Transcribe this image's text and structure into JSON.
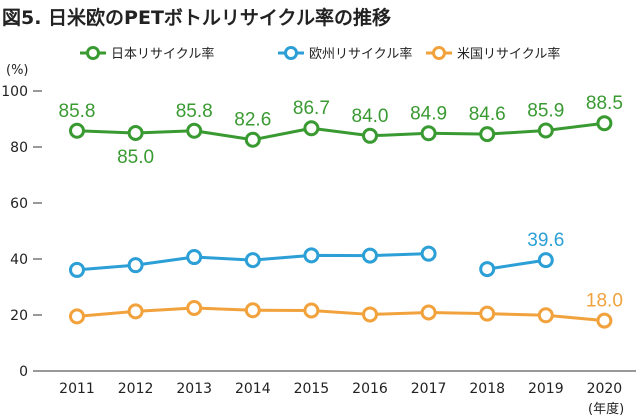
{
  "chart_data": {
    "type": "line",
    "title": "図5. 日米欧のPETボトルリサイクル率の推移",
    "y_unit": "(%)",
    "x_unit": "(年度)",
    "x": [
      "2011",
      "2012",
      "2013",
      "2014",
      "2015",
      "2016",
      "2017",
      "2018",
      "2019",
      "2020"
    ],
    "y_ticks": [
      "0",
      "20",
      "40",
      "60",
      "80",
      "100"
    ],
    "ylim": [
      0,
      100
    ],
    "grid": false,
    "legend_position": "top",
    "series": [
      {
        "name": "日本リサイクル率",
        "color": "#3a9a32",
        "values": [
          85.8,
          85.0,
          85.8,
          82.6,
          86.7,
          84.0,
          84.9,
          84.6,
          85.9,
          88.5
        ],
        "labels": [
          "85.8",
          "85.0",
          "85.8",
          "82.6",
          "86.7",
          "84.0",
          "84.9",
          "84.6",
          "85.9",
          "88.5"
        ]
      },
      {
        "name": "欧州リサイクル率",
        "color": "#2b9fd6",
        "values": [
          36.1,
          37.8,
          40.7,
          39.6,
          41.3,
          41.2,
          41.9,
          null,
          39.6,
          null
        ],
        "values_after_gap": {
          "2018": 36.4
        },
        "labels": [
          null,
          null,
          null,
          null,
          null,
          null,
          null,
          null,
          "39.6",
          null
        ]
      },
      {
        "name": "米国リサイクル率",
        "color": "#f2a23c",
        "values": [
          19.5,
          21.3,
          22.5,
          21.7,
          21.6,
          20.2,
          20.9,
          20.5,
          19.9,
          18.0
        ],
        "labels": [
          null,
          null,
          null,
          null,
          null,
          null,
          null,
          null,
          null,
          "18.0"
        ]
      }
    ]
  }
}
